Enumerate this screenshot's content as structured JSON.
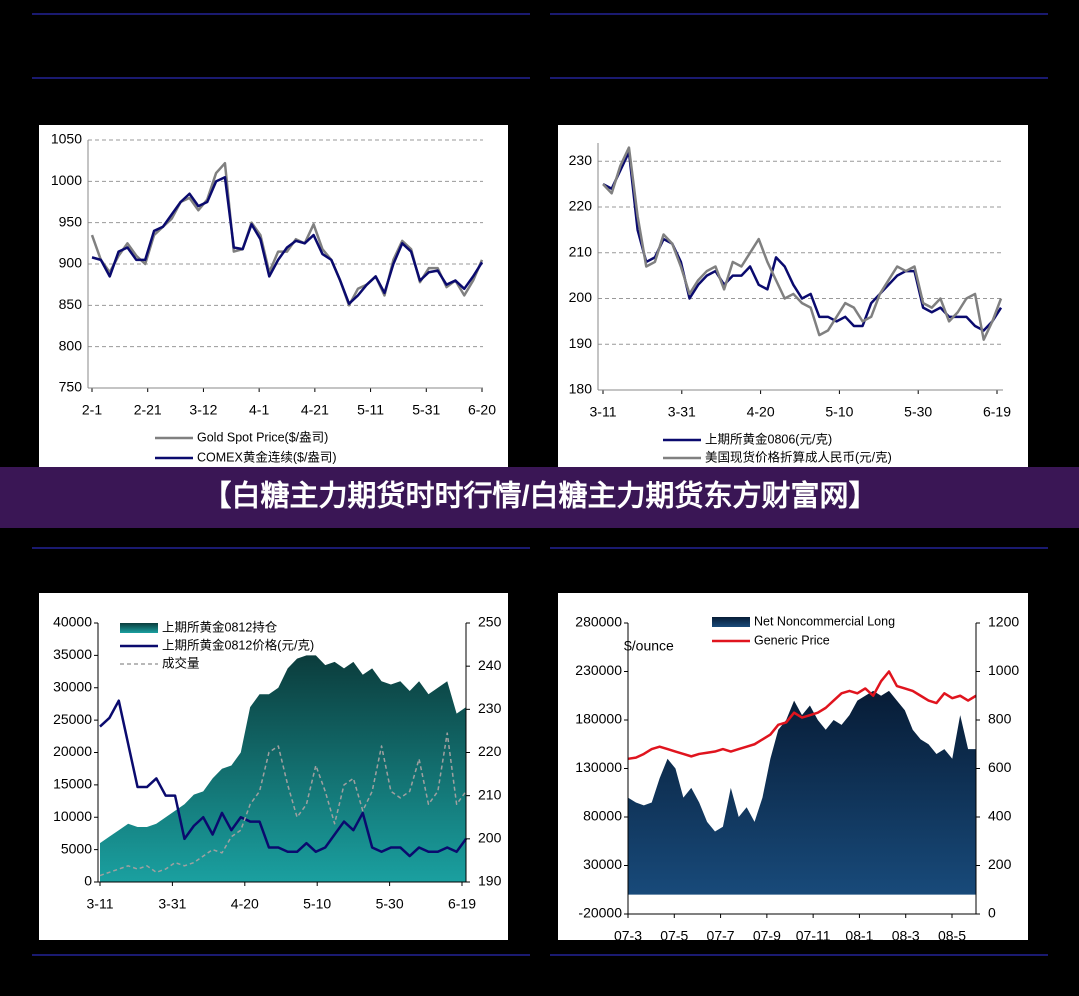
{
  "banner": "【白糖主力期货时时行情/白糖主力期货东方财富网】",
  "chart_data": [
    {
      "type": "line",
      "ylim": [
        750,
        1050
      ],
      "yticks": [
        750,
        800,
        850,
        900,
        950,
        1000,
        1050
      ],
      "grid": true,
      "xtick_labels": [
        "2-1",
        "2-21",
        "3-12",
        "4-1",
        "4-21",
        "5-11",
        "5-31",
        "6-20"
      ],
      "series": [
        {
          "name": "Gold Spot Price($/盎司)",
          "color": "#808080",
          "values": [
            935,
            905,
            890,
            910,
            925,
            910,
            900,
            935,
            945,
            955,
            975,
            980,
            965,
            978,
            1010,
            1022,
            915,
            918,
            950,
            935,
            890,
            915,
            915,
            930,
            925,
            948,
            918,
            905,
            880,
            850,
            870,
            875,
            885,
            862,
            905,
            928,
            918,
            878,
            895,
            895,
            872,
            880,
            862,
            880,
            905
          ]
        },
        {
          "name": "COMEX黄金连续($/盎司)",
          "color": "#0a0a6e",
          "values": [
            908,
            905,
            885,
            915,
            920,
            905,
            905,
            940,
            945,
            960,
            975,
            985,
            970,
            975,
            1000,
            1005,
            920,
            918,
            948,
            930,
            885,
            905,
            920,
            928,
            925,
            935,
            912,
            905,
            880,
            852,
            862,
            875,
            885,
            865,
            900,
            925,
            915,
            880,
            890,
            892,
            875,
            880,
            870,
            885,
            902
          ]
        }
      ]
    },
    {
      "type": "line",
      "ylim": [
        180,
        234
      ],
      "yticks": [
        180,
        190,
        200,
        210,
        220,
        230
      ],
      "grid": true,
      "xtick_labels": [
        "3-11",
        "3-31",
        "4-20",
        "5-10",
        "5-30",
        "6-19"
      ],
      "series": [
        {
          "name": "上期所黄金0806(元/克)",
          "color": "#0a0a6e",
          "values": [
            225,
            224,
            228,
            232,
            215,
            208,
            209,
            213,
            212,
            208,
            200,
            203,
            205,
            206,
            203,
            205,
            205,
            207,
            203,
            202,
            209,
            207,
            203,
            200,
            201,
            196,
            196,
            195,
            196,
            194,
            194,
            199,
            201,
            203,
            205,
            206,
            206,
            198,
            197,
            198,
            196,
            196,
            196,
            194,
            193,
            195,
            198
          ]
        },
        {
          "name": "美国现货价格折算成人民币(元/克)",
          "color": "#808080",
          "values": [
            225,
            223,
            229,
            233,
            218,
            207,
            208,
            214,
            212,
            207,
            201,
            204,
            206,
            207,
            202,
            208,
            207,
            210,
            213,
            208,
            204,
            200,
            201,
            199,
            198,
            192,
            193,
            196,
            199,
            198,
            195,
            196,
            201,
            204,
            207,
            206,
            207,
            199,
            198,
            200,
            195,
            197,
            200,
            201,
            191,
            195,
            200
          ]
        }
      ]
    },
    {
      "type": "line",
      "ylim": [
        0,
        40000
      ],
      "yticks": [
        0,
        5000,
        10000,
        15000,
        20000,
        25000,
        30000,
        35000,
        40000
      ],
      "y2lim": [
        190,
        250
      ],
      "y2ticks": [
        190,
        200,
        210,
        220,
        230,
        240,
        250
      ],
      "grid": false,
      "xtick_labels": [
        "3-11",
        "3-31",
        "4-20",
        "5-10",
        "5-30",
        "6-19"
      ],
      "series": [
        {
          "name": "上期所黄金0812持仓",
          "color": "#137a7a",
          "style": "area",
          "values": [
            6000,
            7000,
            8000,
            9000,
            8500,
            8500,
            9000,
            10000,
            11000,
            12000,
            13500,
            14000,
            16000,
            17500,
            18000,
            20000,
            27000,
            29000,
            29000,
            30000,
            33000,
            34500,
            35000,
            35000,
            33500,
            34000,
            33000,
            34000,
            32000,
            33000,
            31000,
            30500,
            31000,
            29500,
            31000,
            29000,
            30000,
            31000,
            26000,
            27000
          ]
        },
        {
          "name": "上期所黄金0812价格(元/克)",
          "color": "#0a0a6e",
          "axis": "y2",
          "values": [
            226,
            228,
            232,
            222,
            212,
            212,
            214,
            210,
            210,
            200,
            203,
            205,
            201,
            206,
            202,
            205,
            204,
            204,
            198,
            198,
            197,
            197,
            199,
            197,
            198,
            201,
            204,
            202,
            206,
            198,
            197,
            198,
            198,
            196,
            198,
            197,
            197,
            198,
            197,
            200
          ]
        },
        {
          "name": "成交量",
          "color": "#a0a0a0",
          "style": "dashed",
          "values": [
            1000,
            1500,
            2000,
            2500,
            2000,
            2500,
            1500,
            2000,
            3000,
            2500,
            3000,
            4000,
            5000,
            4500,
            7000,
            8000,
            12000,
            14000,
            20000,
            21000,
            15000,
            10000,
            12000,
            18000,
            14000,
            9000,
            15000,
            16000,
            11000,
            14000,
            21000,
            14000,
            13000,
            14000,
            19000,
            12000,
            14000,
            23000,
            12000,
            14000
          ]
        }
      ]
    },
    {
      "type": "line",
      "y_label": "$/ounce",
      "ylim": [
        -20000,
        280000
      ],
      "yticks": [
        -20000,
        30000,
        80000,
        130000,
        180000,
        230000,
        280000
      ],
      "y2lim": [
        0,
        1200
      ],
      "y2ticks": [
        0,
        200,
        400,
        600,
        800,
        1000,
        1200
      ],
      "grid": false,
      "xtick_labels": [
        "07-3",
        "07-5",
        "07-7",
        "07-9",
        "07-11",
        "08-1",
        "08-3",
        "08-5"
      ],
      "series": [
        {
          "name": "Net Noncommercial Long",
          "color": "#0d2e55",
          "style": "area",
          "values": [
            100000,
            95000,
            92000,
            95000,
            120000,
            140000,
            130000,
            100000,
            110000,
            95000,
            75000,
            65000,
            70000,
            110000,
            80000,
            90000,
            75000,
            100000,
            140000,
            170000,
            180000,
            200000,
            185000,
            195000,
            180000,
            170000,
            180000,
            175000,
            185000,
            200000,
            205000,
            210000,
            205000,
            210000,
            200000,
            190000,
            170000,
            160000,
            155000,
            145000,
            150000,
            140000,
            185000,
            150000,
            150000
          ]
        },
        {
          "name": "Generic Price",
          "color": "#e0141e",
          "axis": "y2",
          "values": [
            640,
            645,
            660,
            680,
            690,
            680,
            670,
            660,
            650,
            660,
            665,
            670,
            680,
            670,
            680,
            690,
            700,
            720,
            740,
            780,
            790,
            830,
            810,
            820,
            830,
            850,
            880,
            910,
            920,
            910,
            930,
            900,
            960,
            1000,
            940,
            930,
            920,
            900,
            880,
            870,
            910,
            890,
            900,
            880,
            900
          ]
        }
      ]
    }
  ]
}
